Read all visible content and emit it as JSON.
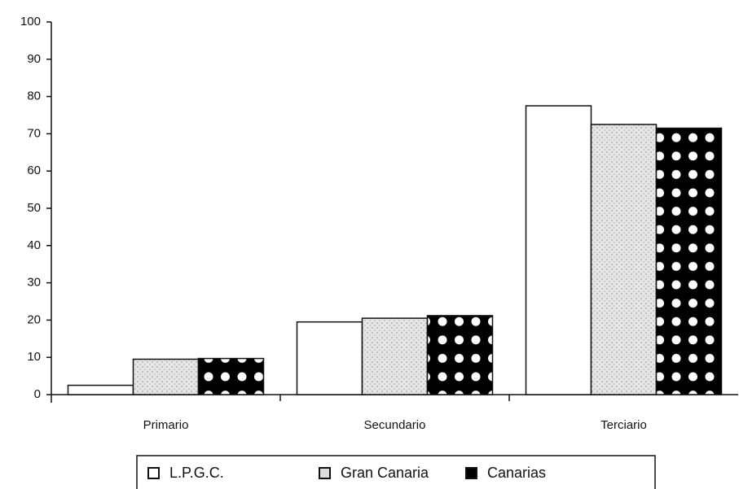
{
  "chart_data": {
    "type": "bar",
    "categories": [
      "Primario",
      "Secundario",
      "Terciario"
    ],
    "series": [
      {
        "name": "L.P.G.C.",
        "color": "#ffffff",
        "values": [
          2.5,
          19.5,
          77.5
        ]
      },
      {
        "name": "Gran Canaria",
        "color": "#d9d9d9",
        "values": [
          9.5,
          20.5,
          72.5
        ]
      },
      {
        "name": "Canarias",
        "color": "#000000",
        "values": [
          9.7,
          21.2,
          71.5
        ]
      }
    ],
    "ylim": [
      0,
      100
    ],
    "yticks": [
      0,
      10,
      20,
      30,
      40,
      50,
      60,
      70,
      80,
      90,
      100
    ],
    "grid": false,
    "legend": "bottom"
  }
}
